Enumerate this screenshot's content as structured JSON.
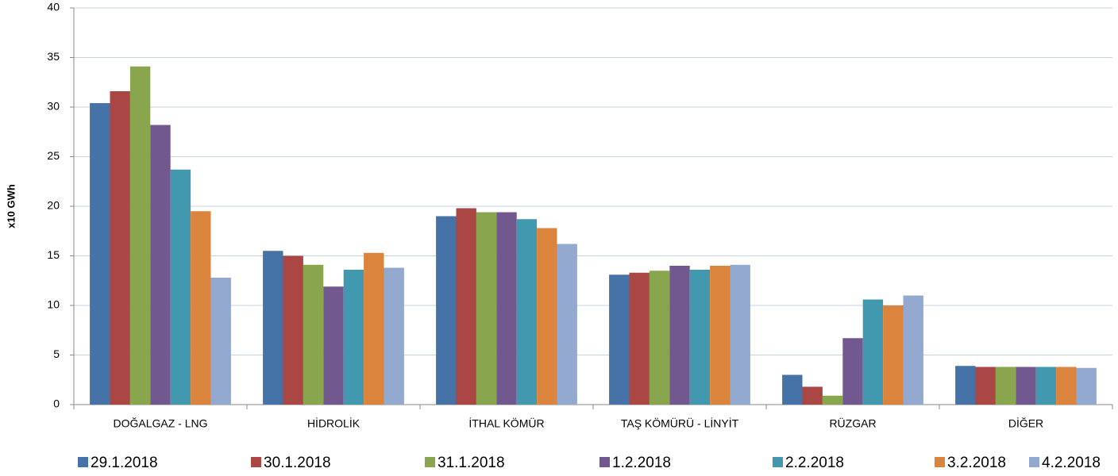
{
  "chart_data": {
    "type": "bar",
    "y_label": "x10 GWh",
    "categories": [
      "DOĞALGAZ - LNG",
      "HİDROLİK",
      "İTHAL KÖMÜR",
      "TAŞ KÖMÜRÜ - LİNYİT",
      "RÜZGAR",
      "DİĞER"
    ],
    "series": [
      {
        "name": "29.1.2018",
        "color": "#4572a7",
        "values": [
          30.4,
          15.5,
          19.0,
          13.1,
          3.0,
          3.9
        ]
      },
      {
        "name": "30.1.2018",
        "color": "#aa4643",
        "values": [
          31.6,
          15.0,
          19.8,
          13.3,
          1.8,
          3.8
        ]
      },
      {
        "name": "31.1.2018",
        "color": "#89a54e",
        "values": [
          34.1,
          14.1,
          19.4,
          13.5,
          0.9,
          3.8
        ]
      },
      {
        "name": "1.2.2018",
        "color": "#71588f",
        "values": [
          28.2,
          11.9,
          19.4,
          14.0,
          6.7,
          3.8
        ]
      },
      {
        "name": "2.2.2018",
        "color": "#4198af",
        "values": [
          23.7,
          13.6,
          18.7,
          13.6,
          10.6,
          3.8
        ]
      },
      {
        "name": "3.2.2018",
        "color": "#db843d",
        "values": [
          19.5,
          15.3,
          17.8,
          14.0,
          10.0,
          3.8
        ]
      },
      {
        "name": "4.2.2018",
        "color": "#93a9cf",
        "values": [
          12.8,
          13.8,
          16.2,
          14.1,
          11.0,
          3.7
        ]
      }
    ],
    "ylim": [
      0,
      40
    ],
    "yticks": [
      0,
      5,
      10,
      15,
      20,
      25,
      30,
      35,
      40
    ],
    "grid": true,
    "legend": "bottom"
  }
}
